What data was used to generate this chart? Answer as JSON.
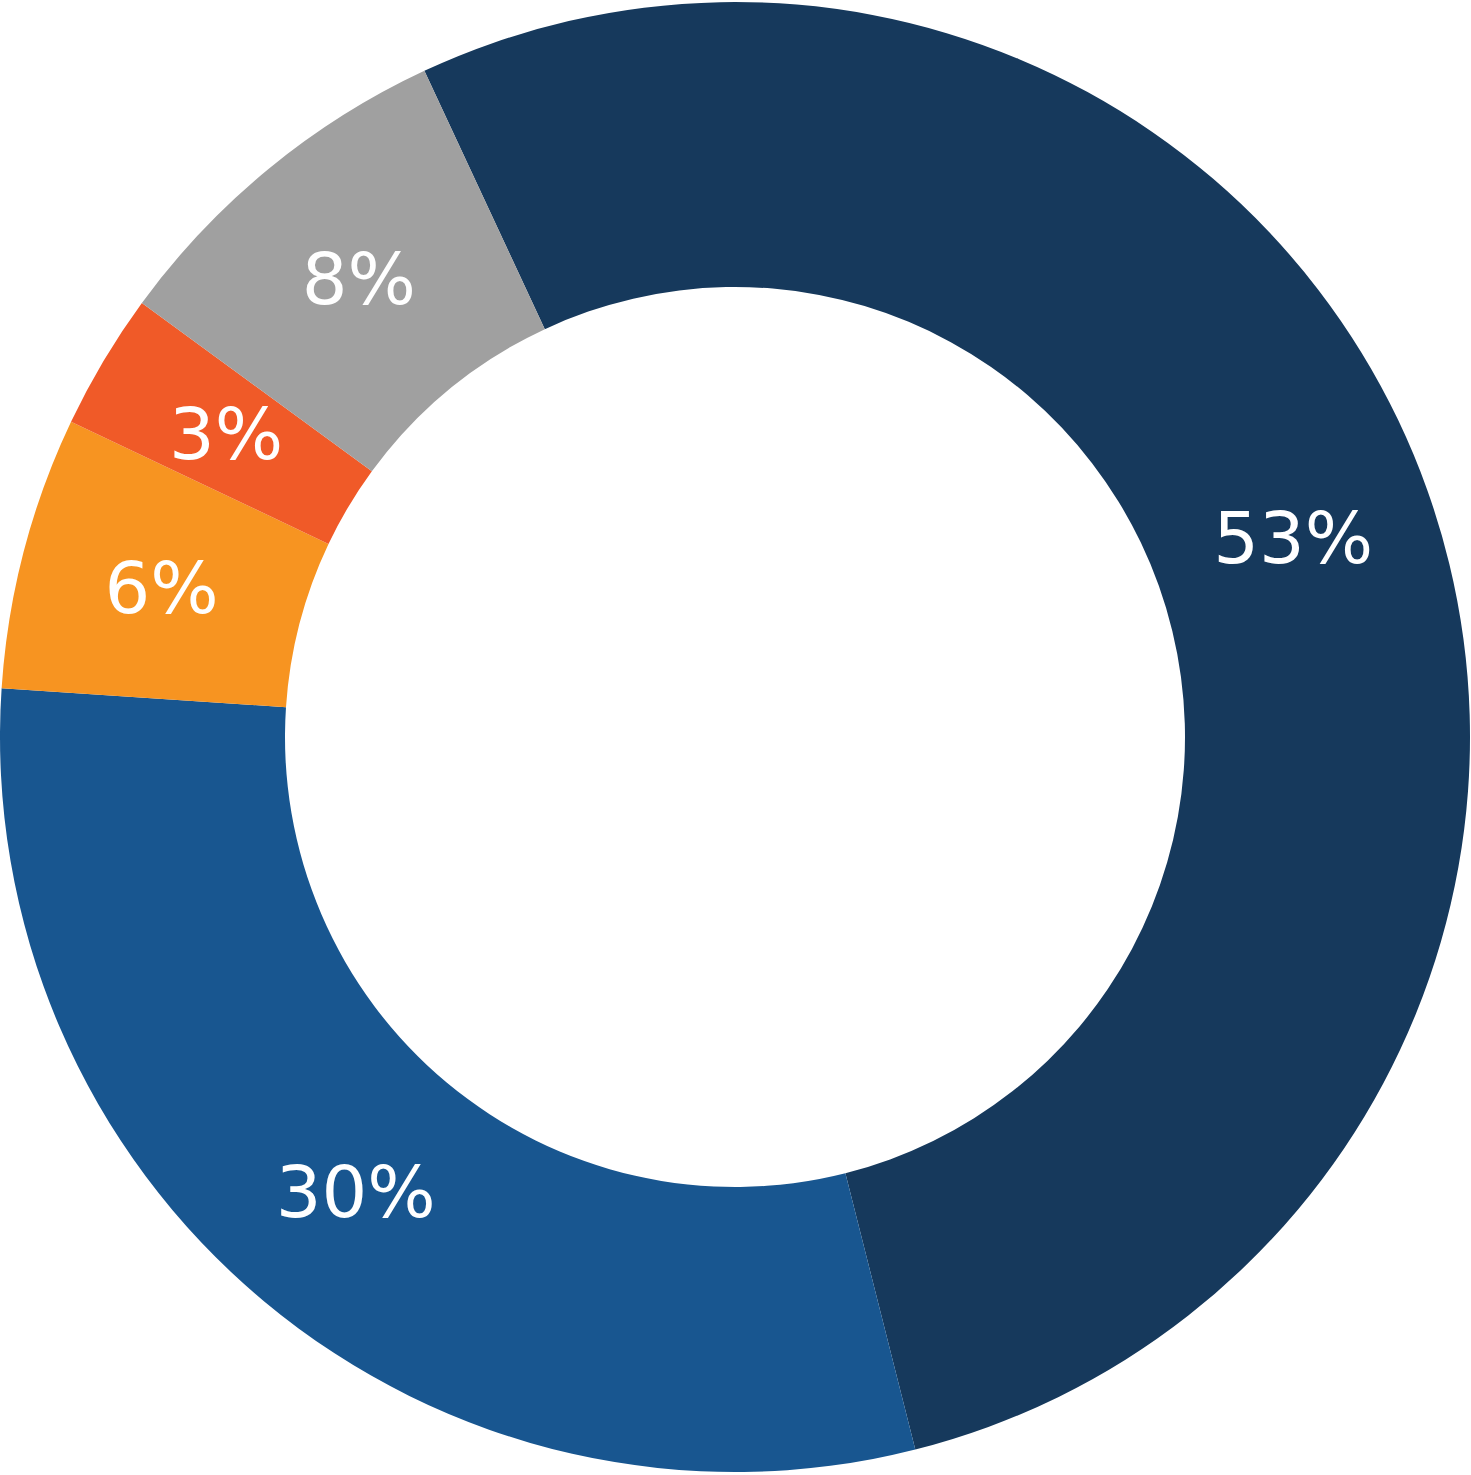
{
  "chart_data": {
    "type": "donut",
    "categories": [
      null,
      null,
      null,
      null,
      null
    ],
    "values": [
      53,
      30,
      6,
      3,
      8
    ],
    "colors": [
      "#16395c",
      "#185690",
      "#f79421",
      "#f05a28",
      "#a0a0a0"
    ],
    "value_labels": [
      "53%",
      "30%",
      "6%",
      "3%",
      "8%"
    ]
  }
}
